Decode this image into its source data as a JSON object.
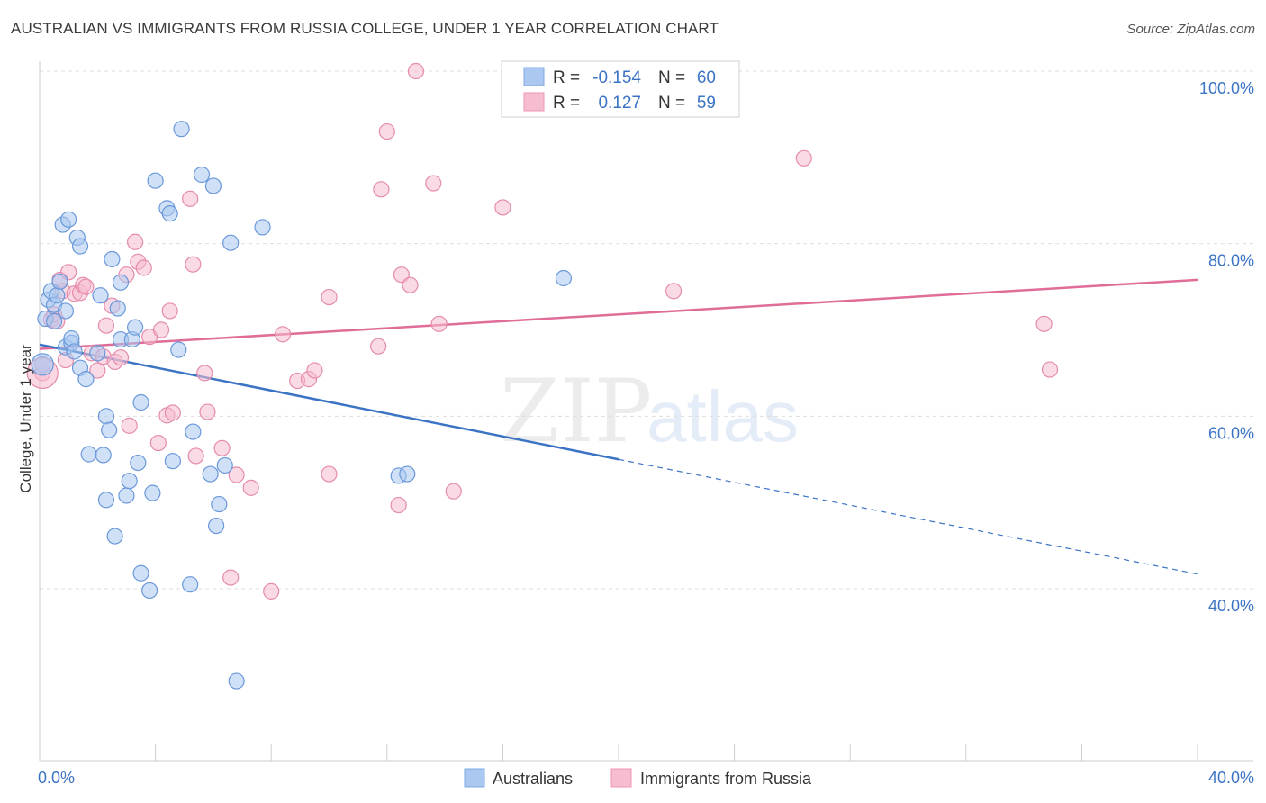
{
  "title": "AUSTRALIAN VS IMMIGRANTS FROM RUSSIA COLLEGE, UNDER 1 YEAR CORRELATION CHART",
  "source": "Source: ZipAtlas.com",
  "watermark": {
    "zip": "ZIP",
    "atlas": "atlas"
  },
  "colors": {
    "blue": "#3b73c5",
    "blue_fill": "#aac8f0",
    "pink": "#e06c98",
    "pink_fill": "#f6bcd0",
    "grid": "#dddddd"
  },
  "legend": {
    "rows": [
      {
        "r_label": "R =",
        "r_value": "-0.154",
        "n_label": "N =",
        "n_value": "60"
      },
      {
        "r_label": "R =",
        "r_value": "0.127",
        "n_label": "N =",
        "n_value": "59"
      }
    ]
  },
  "chart_data": {
    "type": "scatter",
    "title": "AUSTRALIAN VS IMMIGRANTS FROM RUSSIA COLLEGE, UNDER 1 YEAR CORRELATION CHART",
    "xlabel": "",
    "ylabel": "College, Under 1 year",
    "xlim": [
      0,
      40
    ],
    "ylim": [
      20,
      102
    ],
    "x_tick_labels": [
      "0.0%",
      "40.0%"
    ],
    "y_tick_labels": [
      "100.0%",
      "80.0%",
      "60.0%",
      "40.0%"
    ],
    "y_ticks": [
      100,
      80,
      60,
      40
    ],
    "series": [
      {
        "name": "Australians",
        "color": "#3b73c5",
        "r": "-0.154",
        "n": "60",
        "trend": {
          "x0": 0.0,
          "y0": 68.3,
          "x1": 20.0,
          "y1": 55.0,
          "dash_x1": 40.0,
          "dash_y1": 41.7
        },
        "points": [
          [
            0.1,
            66.0
          ],
          [
            0.2,
            71.3
          ],
          [
            0.3,
            73.5
          ],
          [
            0.4,
            74.5
          ],
          [
            0.5,
            72.9
          ],
          [
            0.6,
            74.0
          ],
          [
            0.7,
            75.6
          ],
          [
            0.8,
            82.2
          ],
          [
            0.9,
            72.2
          ],
          [
            0.9,
            68.0
          ],
          [
            1.0,
            82.8
          ],
          [
            1.1,
            68.5
          ],
          [
            1.1,
            69.0
          ],
          [
            1.2,
            67.5
          ],
          [
            1.3,
            80.7
          ],
          [
            1.4,
            79.7
          ],
          [
            1.4,
            65.6
          ],
          [
            1.6,
            64.3
          ],
          [
            1.7,
            55.6
          ],
          [
            2.0,
            67.3
          ],
          [
            2.1,
            74.0
          ],
          [
            2.2,
            55.5
          ],
          [
            2.3,
            50.3
          ],
          [
            2.3,
            60.0
          ],
          [
            2.4,
            58.4
          ],
          [
            2.5,
            78.2
          ],
          [
            2.6,
            46.1
          ],
          [
            2.7,
            72.5
          ],
          [
            2.8,
            75.5
          ],
          [
            2.8,
            68.9
          ],
          [
            3.0,
            50.8
          ],
          [
            3.1,
            52.5
          ],
          [
            3.2,
            68.9
          ],
          [
            3.3,
            70.3
          ],
          [
            3.4,
            54.6
          ],
          [
            3.5,
            61.6
          ],
          [
            3.5,
            41.8
          ],
          [
            3.8,
            39.8
          ],
          [
            3.9,
            51.1
          ],
          [
            4.0,
            87.3
          ],
          [
            4.4,
            84.1
          ],
          [
            4.5,
            83.5
          ],
          [
            4.6,
            54.8
          ],
          [
            4.8,
            67.7
          ],
          [
            4.9,
            93.3
          ],
          [
            5.2,
            40.5
          ],
          [
            5.3,
            58.2
          ],
          [
            5.6,
            88.0
          ],
          [
            5.9,
            53.3
          ],
          [
            6.0,
            86.7
          ],
          [
            6.1,
            47.3
          ],
          [
            6.2,
            49.8
          ],
          [
            6.4,
            54.3
          ],
          [
            6.6,
            80.1
          ],
          [
            6.8,
            29.3
          ],
          [
            7.7,
            81.9
          ],
          [
            12.4,
            53.1
          ],
          [
            12.7,
            53.3
          ],
          [
            18.1,
            76.0
          ],
          [
            0.5,
            71.0
          ]
        ]
      },
      {
        "name": "Immigrants from Russia",
        "color": "#e06c98",
        "r": "0.127",
        "n": "59",
        "trend": {
          "x0": 0.0,
          "y0": 67.8,
          "x1": 40.0,
          "y1": 75.8
        },
        "points": [
          [
            0.1,
            65.0
          ],
          [
            0.4,
            71.2
          ],
          [
            0.5,
            71.8
          ],
          [
            0.6,
            71.0
          ],
          [
            0.7,
            75.8
          ],
          [
            0.8,
            74.5
          ],
          [
            0.9,
            66.5
          ],
          [
            1.0,
            76.7
          ],
          [
            1.2,
            74.2
          ],
          [
            1.4,
            74.3
          ],
          [
            1.5,
            75.2
          ],
          [
            1.6,
            75.0
          ],
          [
            1.8,
            67.3
          ],
          [
            2.0,
            65.3
          ],
          [
            2.2,
            66.9
          ],
          [
            2.3,
            70.5
          ],
          [
            2.5,
            72.8
          ],
          [
            2.6,
            66.3
          ],
          [
            2.8,
            66.8
          ],
          [
            3.0,
            76.4
          ],
          [
            3.1,
            58.9
          ],
          [
            3.3,
            80.2
          ],
          [
            3.4,
            77.9
          ],
          [
            3.6,
            77.2
          ],
          [
            3.8,
            69.2
          ],
          [
            4.1,
            56.9
          ],
          [
            4.2,
            70.0
          ],
          [
            4.4,
            60.1
          ],
          [
            4.5,
            72.2
          ],
          [
            4.6,
            60.4
          ],
          [
            5.2,
            85.2
          ],
          [
            5.3,
            77.6
          ],
          [
            5.4,
            55.4
          ],
          [
            5.7,
            65.0
          ],
          [
            5.8,
            60.5
          ],
          [
            6.3,
            56.3
          ],
          [
            6.6,
            41.3
          ],
          [
            6.8,
            53.2
          ],
          [
            7.3,
            51.7
          ],
          [
            8.0,
            39.7
          ],
          [
            8.4,
            69.5
          ],
          [
            8.9,
            64.1
          ],
          [
            9.3,
            64.3
          ],
          [
            9.5,
            65.3
          ],
          [
            10.0,
            73.8
          ],
          [
            10.0,
            53.3
          ],
          [
            11.7,
            68.1
          ],
          [
            11.8,
            86.3
          ],
          [
            12.0,
            93.0
          ],
          [
            12.4,
            49.7
          ],
          [
            12.5,
            76.4
          ],
          [
            12.8,
            75.2
          ],
          [
            13.0,
            100.0
          ],
          [
            13.6,
            87.0
          ],
          [
            13.8,
            70.7
          ],
          [
            14.3,
            51.3
          ],
          [
            16.0,
            84.2
          ],
          [
            21.9,
            74.5
          ],
          [
            26.4,
            89.9
          ]
        ],
        "extra_points": [
          [
            34.7,
            70.7
          ],
          [
            34.9,
            65.4
          ]
        ]
      }
    ],
    "legend_position": "top-center",
    "grid": true
  },
  "bottom_legend": {
    "items": [
      {
        "label": "Australians"
      },
      {
        "label": "Immigrants from Russia"
      }
    ]
  }
}
